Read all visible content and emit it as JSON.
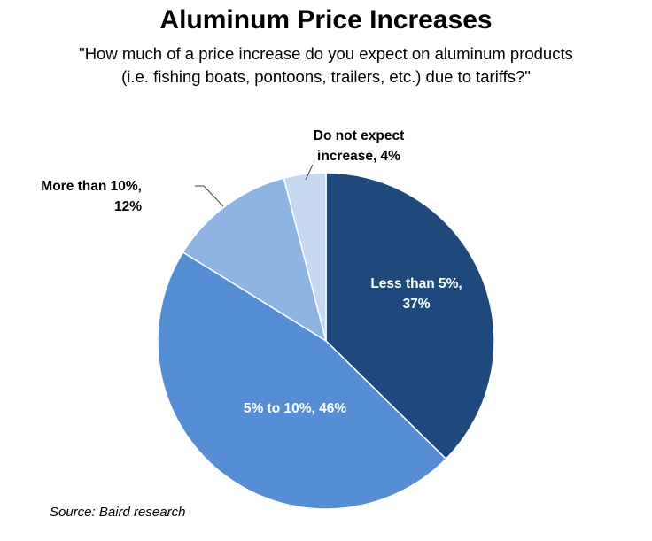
{
  "chart_data": {
    "type": "pie",
    "title": "Aluminum Price Increases",
    "subtitle_lines": [
      "\"How much of a price increase do you expect on aluminum products",
      "(i.e. fishing boats, pontoons, trailers, etc.) due to tariffs?\""
    ],
    "slices": [
      {
        "label_lines": [
          "Less than 5%,",
          "37%"
        ],
        "value": 37,
        "color": "#1f497d",
        "label_color": "#ffffff"
      },
      {
        "label_lines": [
          "5% to 10%, 46%"
        ],
        "value": 46,
        "color": "#558ed5",
        "label_color": "#ffffff"
      },
      {
        "label_lines": [
          "More than 10%,",
          "12%"
        ],
        "value": 12,
        "color": "#8eb4e3",
        "label_color": "#000000"
      },
      {
        "label_lines": [
          "Do not expect",
          "increase, 4%"
        ],
        "value": 4,
        "color": "#c6d9f1",
        "label_color": "#000000"
      }
    ],
    "start_angle": "12 o'clock",
    "direction": "clockwise",
    "legend": "none",
    "source": "Source: Baird research"
  }
}
